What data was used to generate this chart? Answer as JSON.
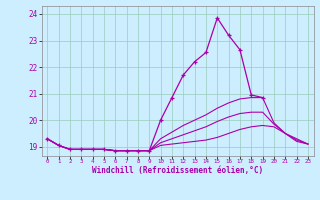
{
  "xlabel": "Windchill (Refroidissement éolien,°C)",
  "bg_color": "#cceeff",
  "line_color": "#aa00aa",
  "grid_color": "#99ccbb",
  "x_hours": [
    0,
    1,
    2,
    3,
    4,
    5,
    6,
    7,
    8,
    9,
    10,
    11,
    12,
    13,
    14,
    15,
    16,
    17,
    18,
    19,
    20,
    21,
    22,
    23
  ],
  "main_line": [
    19.3,
    19.05,
    18.9,
    18.9,
    18.9,
    18.9,
    18.85,
    18.85,
    18.85,
    18.85,
    20.0,
    20.85,
    21.7,
    22.2,
    22.55,
    23.85,
    23.2,
    22.65,
    20.95,
    20.85,
    null,
    null,
    null,
    null
  ],
  "line2": [
    19.3,
    19.05,
    18.9,
    18.9,
    18.9,
    18.9,
    18.85,
    18.85,
    18.85,
    18.85,
    19.3,
    19.55,
    19.8,
    20.0,
    20.2,
    20.45,
    20.65,
    20.8,
    20.85,
    20.85,
    19.9,
    19.5,
    19.3,
    19.1
  ],
  "line3": [
    19.3,
    19.05,
    18.9,
    18.9,
    18.9,
    18.9,
    18.85,
    18.85,
    18.85,
    18.85,
    19.15,
    19.3,
    19.45,
    19.6,
    19.75,
    19.95,
    20.12,
    20.25,
    20.3,
    20.3,
    19.85,
    19.5,
    19.25,
    19.1
  ],
  "line4": [
    19.3,
    19.05,
    18.9,
    18.9,
    18.9,
    18.9,
    18.85,
    18.85,
    18.85,
    18.85,
    19.05,
    19.1,
    19.15,
    19.2,
    19.25,
    19.35,
    19.5,
    19.65,
    19.75,
    19.8,
    19.75,
    19.5,
    19.2,
    19.1
  ],
  "ylim": [
    18.65,
    24.3
  ],
  "xlim": [
    -0.5,
    23.5
  ],
  "yticks": [
    19,
    20,
    21,
    22,
    23,
    24
  ],
  "xticks": [
    0,
    1,
    2,
    3,
    4,
    5,
    6,
    7,
    8,
    9,
    10,
    11,
    12,
    13,
    14,
    15,
    16,
    17,
    18,
    19,
    20,
    21,
    22,
    23
  ],
  "figsize": [
    3.2,
    2.0
  ],
  "dpi": 100
}
